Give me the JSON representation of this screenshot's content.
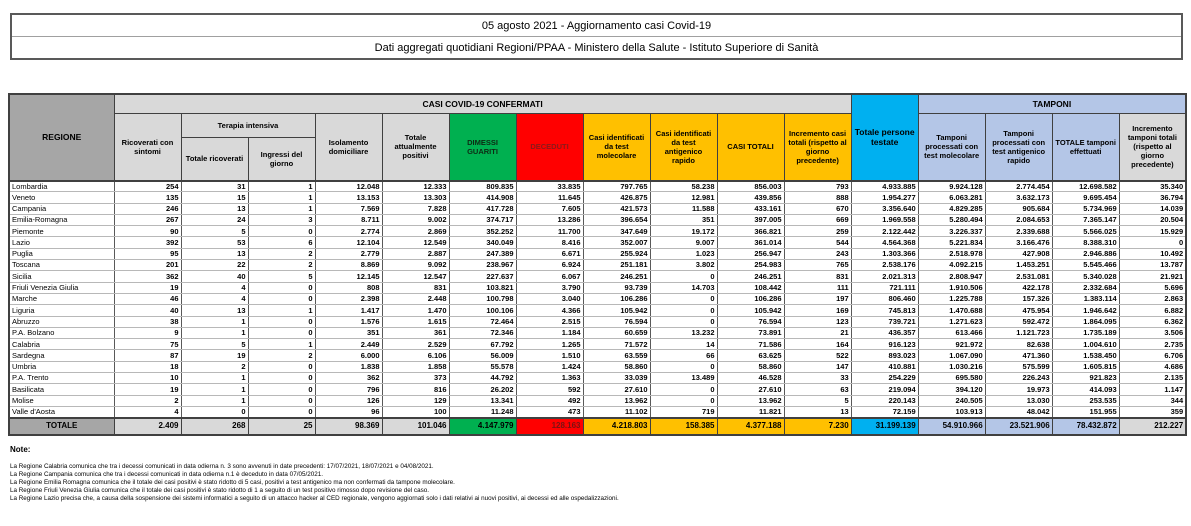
{
  "title": {
    "line1": "05 agosto 2021 - Aggiornamento casi Covid-19",
    "line2": "Dati aggregati quotidiani Regioni/PPAA - Ministero della Salute - Istituto Superiore di Sanità"
  },
  "table": {
    "group_headers": {
      "regione": "REGIONE",
      "casi_confermati": "CASI COVID-19 CONFERMATI",
      "terapia_intensiva": "Terapia intensiva",
      "totale_persone_testate": "Totale persone testate",
      "tamponi": "TAMPONI"
    },
    "column_headers": [
      "Ricoverati con sintomi",
      "Totale ricoverati",
      "Ingressi del giorno",
      "Isolamento domiciliare",
      "Totale attualmente positivi",
      "DIMESSI GUARITI",
      "DECEDUTI",
      "Casi identificati da test molecolare",
      "Casi identificati da test antigenico rapido",
      "CASI TOTALI",
      "Incremento casi totali (rispetto al giorno precedente)",
      "Tamponi processati con test molecolare",
      "Tamponi processati con test antigenico rapido",
      "TOTALE tamponi effettuati",
      "Incremento tamponi totali (rispetto al giorno precedente)"
    ],
    "rows": [
      {
        "region": "Lombardia",
        "values": [
          "254",
          "31",
          "1",
          "12.048",
          "12.333",
          "809.835",
          "33.835",
          "797.765",
          "58.238",
          "856.003",
          "793",
          "4.933.885",
          "9.924.128",
          "2.774.454",
          "12.698.582",
          "35.340"
        ]
      },
      {
        "region": "Veneto",
        "values": [
          "135",
          "15",
          "1",
          "13.153",
          "13.303",
          "414.908",
          "11.645",
          "426.875",
          "12.981",
          "439.856",
          "888",
          "1.954.277",
          "6.063.281",
          "3.632.173",
          "9.695.454",
          "36.794"
        ]
      },
      {
        "region": "Campania",
        "values": [
          "246",
          "13",
          "1",
          "7.569",
          "7.828",
          "417.728",
          "7.605",
          "421.573",
          "11.588",
          "433.161",
          "670",
          "3.356.640",
          "4.829.285",
          "905.684",
          "5.734.969",
          "14.039"
        ]
      },
      {
        "region": "Emilia-Romagna",
        "values": [
          "267",
          "24",
          "3",
          "8.711",
          "9.002",
          "374.717",
          "13.286",
          "396.654",
          "351",
          "397.005",
          "669",
          "1.969.558",
          "5.280.494",
          "2.084.653",
          "7.365.147",
          "20.504"
        ]
      },
      {
        "region": "Piemonte",
        "values": [
          "90",
          "5",
          "0",
          "2.774",
          "2.869",
          "352.252",
          "11.700",
          "347.649",
          "19.172",
          "366.821",
          "259",
          "2.122.442",
          "3.226.337",
          "2.339.688",
          "5.566.025",
          "15.929"
        ]
      },
      {
        "region": "Lazio",
        "values": [
          "392",
          "53",
          "6",
          "12.104",
          "12.549",
          "340.049",
          "8.416",
          "352.007",
          "9.007",
          "361.014",
          "544",
          "4.564.368",
          "5.221.834",
          "3.166.476",
          "8.388.310",
          "0"
        ]
      },
      {
        "region": "Puglia",
        "values": [
          "95",
          "13",
          "2",
          "2.779",
          "2.887",
          "247.389",
          "6.671",
          "255.924",
          "1.023",
          "256.947",
          "243",
          "1.303.366",
          "2.518.978",
          "427.908",
          "2.946.886",
          "10.492"
        ]
      },
      {
        "region": "Toscana",
        "values": [
          "201",
          "22",
          "2",
          "8.869",
          "9.092",
          "238.967",
          "6.924",
          "251.181",
          "3.802",
          "254.983",
          "765",
          "2.538.176",
          "4.092.215",
          "1.453.251",
          "5.545.466",
          "13.787"
        ]
      },
      {
        "region": "Sicilia",
        "values": [
          "362",
          "40",
          "5",
          "12.145",
          "12.547",
          "227.637",
          "6.067",
          "246.251",
          "0",
          "246.251",
          "831",
          "2.021.313",
          "2.808.947",
          "2.531.081",
          "5.340.028",
          "21.921"
        ]
      },
      {
        "region": "Friuli Venezia Giulia",
        "values": [
          "19",
          "4",
          "0",
          "808",
          "831",
          "103.821",
          "3.790",
          "93.739",
          "14.703",
          "108.442",
          "111",
          "721.111",
          "1.910.506",
          "422.178",
          "2.332.684",
          "5.696"
        ]
      },
      {
        "region": "Marche",
        "values": [
          "46",
          "4",
          "0",
          "2.398",
          "2.448",
          "100.798",
          "3.040",
          "106.286",
          "0",
          "106.286",
          "197",
          "806.460",
          "1.225.788",
          "157.326",
          "1.383.114",
          "2.863"
        ]
      },
      {
        "region": "Liguria",
        "values": [
          "40",
          "13",
          "1",
          "1.417",
          "1.470",
          "100.106",
          "4.366",
          "105.942",
          "0",
          "105.942",
          "169",
          "745.813",
          "1.470.688",
          "475.954",
          "1.946.642",
          "6.882"
        ]
      },
      {
        "region": "Abruzzo",
        "values": [
          "38",
          "1",
          "0",
          "1.576",
          "1.615",
          "72.464",
          "2.515",
          "76.594",
          "0",
          "76.594",
          "123",
          "739.721",
          "1.271.623",
          "592.472",
          "1.864.095",
          "6.362"
        ]
      },
      {
        "region": "P.A. Bolzano",
        "values": [
          "9",
          "1",
          "0",
          "351",
          "361",
          "72.346",
          "1.184",
          "60.659",
          "13.232",
          "73.891",
          "21",
          "436.357",
          "613.466",
          "1.121.723",
          "1.735.189",
          "3.506"
        ]
      },
      {
        "region": "Calabria",
        "values": [
          "75",
          "5",
          "1",
          "2.449",
          "2.529",
          "67.792",
          "1.265",
          "71.572",
          "14",
          "71.586",
          "164",
          "916.123",
          "921.972",
          "82.638",
          "1.004.610",
          "2.735"
        ]
      },
      {
        "region": "Sardegna",
        "values": [
          "87",
          "19",
          "2",
          "6.000",
          "6.106",
          "56.009",
          "1.510",
          "63.559",
          "66",
          "63.625",
          "522",
          "893.023",
          "1.067.090",
          "471.360",
          "1.538.450",
          "6.706"
        ]
      },
      {
        "region": "Umbria",
        "values": [
          "18",
          "2",
          "0",
          "1.838",
          "1.858",
          "55.578",
          "1.424",
          "58.860",
          "0",
          "58.860",
          "147",
          "410.881",
          "1.030.216",
          "575.599",
          "1.605.815",
          "4.686"
        ]
      },
      {
        "region": "P.A. Trento",
        "values": [
          "10",
          "1",
          "0",
          "362",
          "373",
          "44.792",
          "1.363",
          "33.039",
          "13.489",
          "46.528",
          "33",
          "254.229",
          "695.580",
          "226.243",
          "921.823",
          "2.135"
        ]
      },
      {
        "region": "Basilicata",
        "values": [
          "19",
          "1",
          "0",
          "796",
          "816",
          "26.202",
          "592",
          "27.610",
          "0",
          "27.610",
          "63",
          "219.094",
          "394.120",
          "19.973",
          "414.093",
          "1.147"
        ]
      },
      {
        "region": "Molise",
        "values": [
          "2",
          "1",
          "0",
          "126",
          "129",
          "13.341",
          "492",
          "13.962",
          "0",
          "13.962",
          "5",
          "220.143",
          "240.505",
          "13.030",
          "253.535",
          "344"
        ]
      },
      {
        "region": "Valle d'Aosta",
        "values": [
          "4",
          "0",
          "0",
          "96",
          "100",
          "11.248",
          "473",
          "11.102",
          "719",
          "11.821",
          "13",
          "72.159",
          "103.913",
          "48.042",
          "151.955",
          "359"
        ]
      }
    ],
    "total_row": {
      "region": "TOTALE",
      "values": [
        "2.409",
        "268",
        "25",
        "98.369",
        "101.046",
        "4.147.979",
        "128.163",
        "4.218.803",
        "158.385",
        "4.377.188",
        "7.230",
        "31.199.139",
        "54.910.966",
        "23.521.906",
        "78.432.872",
        "212.227"
      ]
    }
  },
  "notes": {
    "heading": "Note:",
    "lines": [
      "La Regione Calabria comunica che tra i decessi comunicati in data odierna n. 3 sono avvenuti in date precedenti: 17/07/2021, 18/07/2021 e 04/08/2021.",
      "La Regione Campania comunica che tra i decessi comunicati in data odierna n.1 è deceduto in data 07/05/2021.",
      "La Regione Emilia Romagna comunica che il totale dei casi positivi è stato ridotto di 5 casi, positivi a test antigenico ma non confermati da tampone molecolare.",
      "La Regione Friuli Venezia Giulia comunica che il totale dei casi positivi è stato ridotto di 1 a seguito di un test positivo rimosso dopo revisione del caso.",
      "La Regione Lazio precisa che, a causa della sospensione dei sistemi informatici a seguito di un attacco hacker al CED regionale, vengono aggiornati solo i dati relativi ai nuovi positivi, ai decessi ed alle ospedalizzazioni."
    ]
  },
  "colors": {
    "green": "#00B050",
    "red": "#FF0000",
    "amber": "#FFC000",
    "cyan": "#00B0F0",
    "lavender": "#B4C6E7",
    "gray_dark": "#A6A6A6",
    "gray_light": "#D9D9D9"
  }
}
